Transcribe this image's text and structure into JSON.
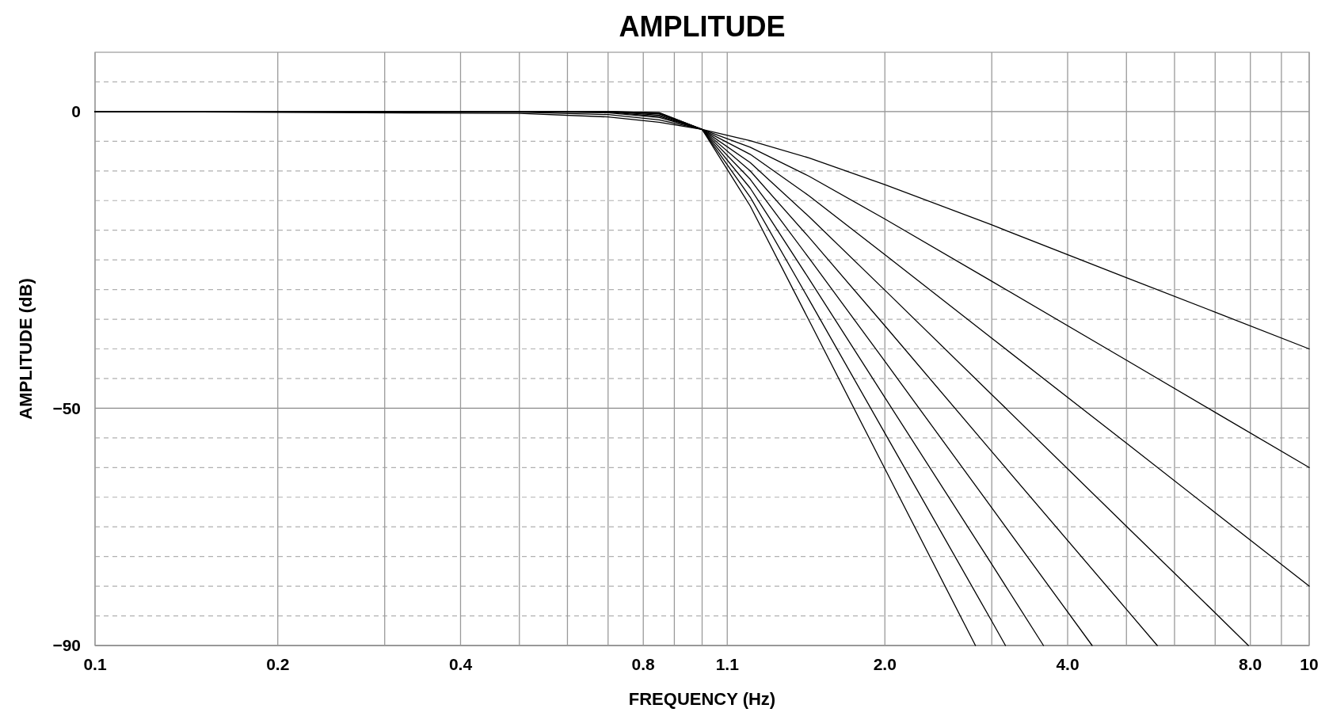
{
  "chart_data": {
    "type": "line",
    "title": "AMPLITUDE",
    "xlabel": "FREQUENCY (Hz)",
    "ylabel": "AMPLITUDE (dB)",
    "log": "x",
    "grid": true,
    "marker": "none",
    "line_style": "solid",
    "xlim": [
      0.1,
      10
    ],
    "ylim": [
      -90,
      10
    ],
    "xticks": [
      0.1,
      0.2,
      {
        "value": 0.3,
        "label": null
      },
      0.4,
      {
        "value": 0.5,
        "label": null
      },
      {
        "value": 0.6,
        "label": null
      },
      {
        "value": 0.7,
        "label": null
      },
      0.8,
      {
        "value": 0.9,
        "label": null
      },
      {
        "value": 1,
        "label": null
      },
      1.1,
      {
        "value": 2,
        "label": "2.0"
      },
      {
        "value": 3,
        "label": null
      },
      {
        "value": 4,
        "label": "4.0"
      },
      {
        "value": 5,
        "label": null
      },
      {
        "value": 6,
        "label": null
      },
      {
        "value": 7,
        "label": null
      },
      {
        "value": 8,
        "label": "8.0"
      },
      {
        "value": 9,
        "label": null
      },
      10
    ],
    "yticks": [
      -90,
      {
        "value": -85,
        "label": null
      },
      {
        "value": -80,
        "label": null
      },
      {
        "value": -75,
        "label": null
      },
      {
        "value": -70,
        "label": null
      },
      {
        "value": -65,
        "label": null
      },
      {
        "value": -60,
        "label": null
      },
      {
        "value": -55,
        "label": null
      },
      -50,
      {
        "value": -45,
        "label": null
      },
      {
        "value": -40,
        "label": null
      },
      {
        "value": -35,
        "label": null
      },
      {
        "value": -30,
        "label": null
      },
      {
        "value": -25,
        "label": null
      },
      {
        "value": -20,
        "label": null
      },
      {
        "value": -15,
        "label": null
      },
      {
        "value": -10,
        "label": null
      },
      {
        "value": -5,
        "label": null
      },
      0,
      {
        "value": 5,
        "label": null
      }
    ],
    "series": [
      {
        "color": "#000000",
        "x": [
          0.1,
          0.5,
          0.7,
          0.85,
          1,
          1.2,
          1.5,
          2,
          3,
          5,
          7,
          10
        ],
        "values": [
          0,
          -0.3,
          -0.9,
          -1.8,
          -3,
          -4.9,
          -7.8,
          -12.3,
          -19.1,
          -28,
          -33.8,
          -40
        ]
      },
      {
        "color": "#000000",
        "x": [
          0.1,
          0.5,
          0.7,
          0.85,
          1,
          1.2,
          1.5,
          2,
          3,
          5,
          7,
          10
        ],
        "values": [
          0,
          -0.1,
          -0.5,
          -1.4,
          -3,
          -6,
          -10.9,
          -18.1,
          -28.6,
          -41.9,
          -50.7,
          -60
        ]
      },
      {
        "color": "#000000",
        "x": [
          0.1,
          0.5,
          0.7,
          0.85,
          1,
          1.2,
          1.5,
          2,
          3,
          5,
          7,
          10
        ],
        "values": [
          0,
          0,
          -0.2,
          -1,
          -3,
          -7.2,
          -14.2,
          -24.1,
          -38.2,
          -55.9,
          -67.6,
          -80
        ]
      },
      {
        "color": "#000000",
        "x": [
          0.1,
          0.5,
          0.7,
          0.85,
          1,
          1.2,
          1.5,
          2,
          3,
          5,
          7,
          7.94
        ],
        "values": [
          0,
          0,
          -0.1,
          -0.8,
          -3,
          -8.6,
          -17.7,
          -30.1,
          -47.7,
          -69.9,
          -84.5,
          -90
        ]
      },
      {
        "color": "#000000",
        "x": [
          0.1,
          0.5,
          0.7,
          0.85,
          1,
          1.2,
          1.5,
          2,
          3,
          5,
          5.62
        ],
        "values": [
          0,
          0,
          0,
          -0.6,
          -3,
          -10,
          -21.2,
          -36.1,
          -57.3,
          -83.9,
          -90
        ]
      },
      {
        "color": "#000000",
        "x": [
          0.1,
          0.5,
          0.7,
          0.85,
          1,
          1.2,
          1.5,
          2,
          3,
          4.39
        ],
        "values": [
          0,
          0,
          0,
          -0.4,
          -3,
          -11.4,
          -24.7,
          -42.1,
          -66.8,
          -90
        ]
      },
      {
        "color": "#000000",
        "x": [
          0.1,
          0.5,
          0.7,
          0.85,
          1,
          1.2,
          1.5,
          2,
          3,
          3.65
        ],
        "values": [
          0,
          0,
          0,
          -0.3,
          -3,
          -12.9,
          -28.2,
          -48.2,
          -76.3,
          -90
        ]
      },
      {
        "color": "#000000",
        "x": [
          0.1,
          0.5,
          0.7,
          0.85,
          1,
          1.2,
          1.5,
          2,
          3,
          3.16
        ],
        "values": [
          0,
          0,
          0,
          -0.2,
          -3,
          -14.4,
          -31.7,
          -54.2,
          -85.9,
          -90
        ]
      },
      {
        "color": "#000000",
        "x": [
          0.1,
          0.5,
          0.7,
          0.85,
          1,
          1.2,
          1.5,
          2,
          2.82
        ],
        "values": [
          0,
          0,
          0,
          -0.2,
          -3,
          -15.9,
          -35.2,
          -60.2,
          -90
        ]
      }
    ]
  }
}
